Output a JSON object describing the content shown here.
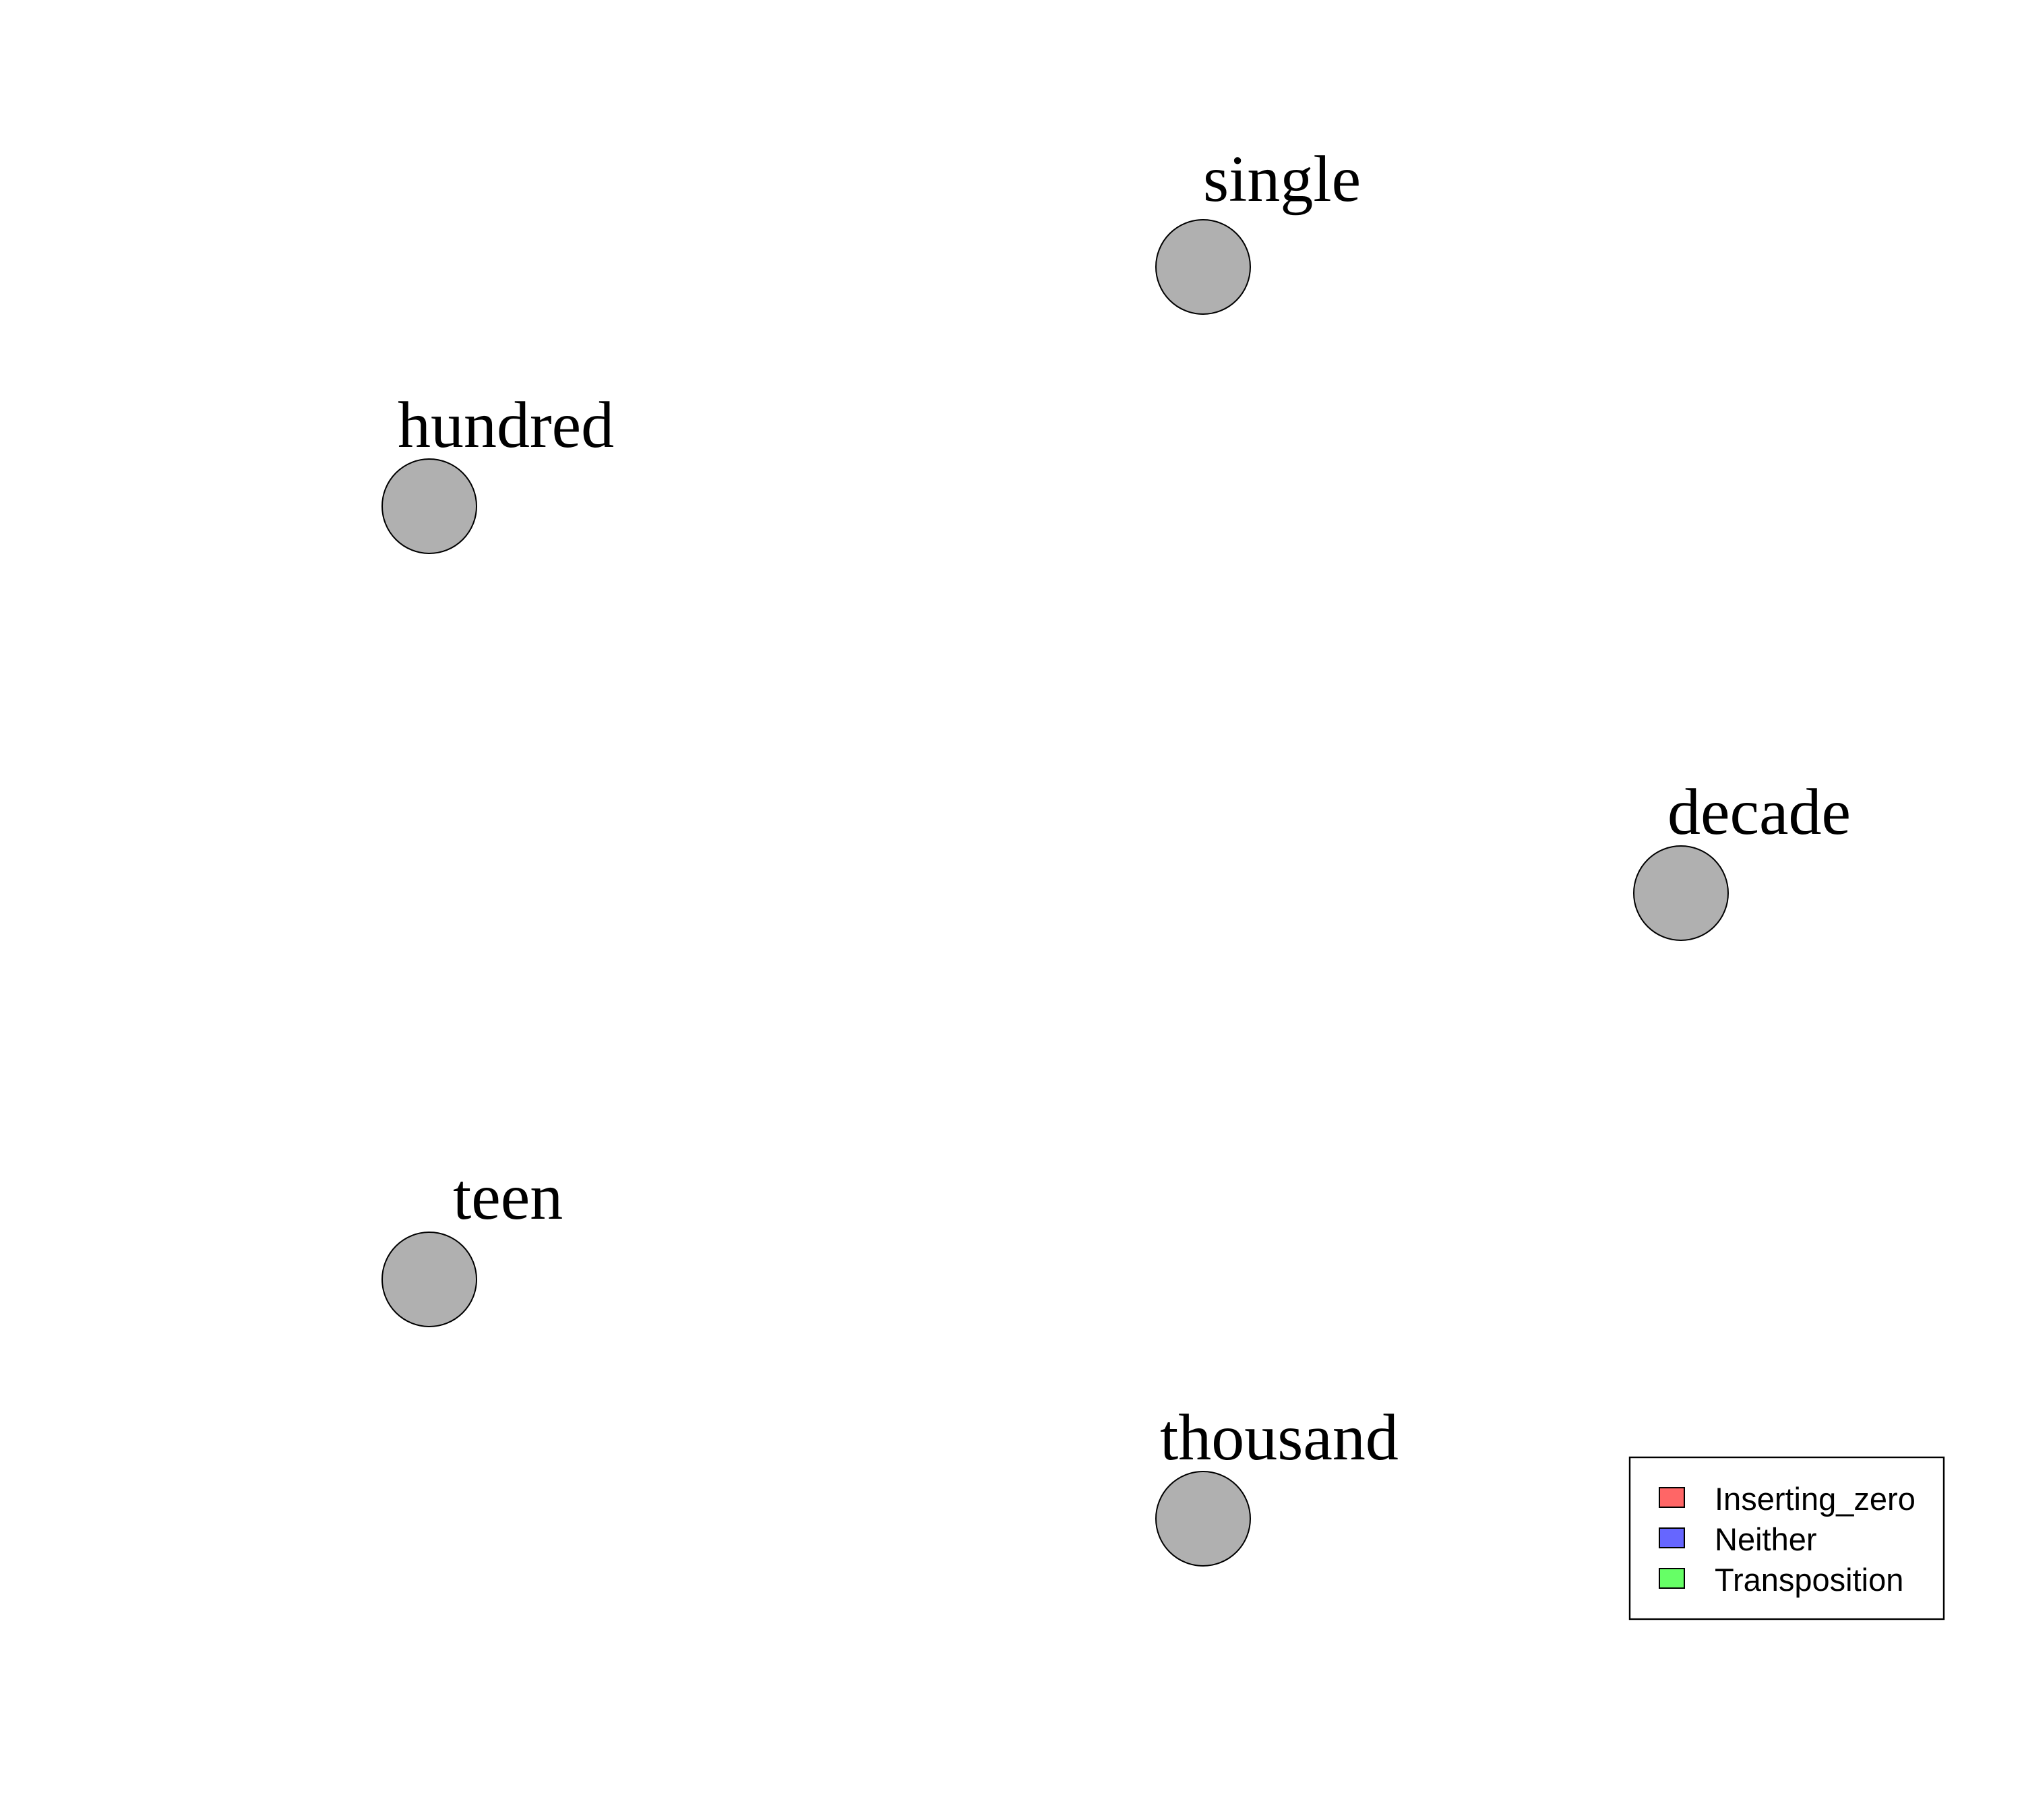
{
  "nodes": [
    {
      "id": "single",
      "label": "single",
      "fill": "#b0b0b0"
    },
    {
      "id": "hundred",
      "label": "hundred",
      "fill": "#b0b0b0"
    },
    {
      "id": "decade",
      "label": "decade",
      "fill": "#b0b0b0"
    },
    {
      "id": "teen",
      "label": "teen",
      "fill": "#b0b0b0"
    },
    {
      "id": "thousand",
      "label": "thousand",
      "fill": "#b0b0b0"
    }
  ],
  "legend": {
    "placement": "bottom-right",
    "items": [
      {
        "label": "Inserting_zero",
        "color": "#ff6666"
      },
      {
        "label": "Neither",
        "color": "#6666ff"
      },
      {
        "label": "Transposition",
        "color": "#66ff66"
      }
    ]
  }
}
